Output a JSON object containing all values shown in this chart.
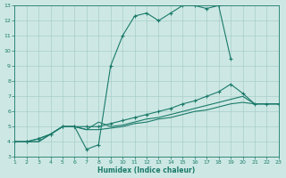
{
  "background_color": "#cde8e4",
  "grid_color": "#a8cdc9",
  "line_color": "#1a7a6a",
  "xlabel": "Humidex (Indice chaleur)",
  "xlim": [
    1,
    23
  ],
  "ylim": [
    3,
    13
  ],
  "xticks": [
    1,
    2,
    3,
    4,
    5,
    6,
    7,
    8,
    9,
    10,
    11,
    12,
    13,
    14,
    15,
    16,
    17,
    18,
    19,
    20,
    21,
    22,
    23
  ],
  "yticks": [
    3,
    4,
    5,
    6,
    7,
    8,
    9,
    10,
    11,
    12,
    13
  ],
  "line1_x": [
    1,
    2,
    3,
    4,
    5,
    6,
    7,
    8,
    9,
    10,
    11,
    12,
    13,
    14,
    15,
    16,
    17,
    18,
    19
  ],
  "line1_y": [
    4.0,
    4.0,
    4.2,
    4.5,
    5.0,
    5.0,
    3.5,
    3.8,
    9.0,
    11.0,
    12.3,
    12.5,
    12.0,
    12.5,
    13.0,
    13.0,
    12.8,
    13.0,
    9.5
  ],
  "line2_x": [
    1,
    2,
    3,
    4,
    5,
    6,
    7,
    8,
    9,
    10,
    11,
    12,
    13,
    14,
    15,
    16,
    17,
    18,
    19,
    20,
    21,
    22,
    23
  ],
  "line2_y": [
    4.0,
    4.0,
    4.2,
    4.5,
    5.0,
    5.0,
    5.0,
    5.0,
    5.2,
    5.4,
    5.6,
    5.8,
    6.0,
    6.2,
    6.5,
    6.7,
    7.0,
    7.3,
    7.8,
    7.2,
    6.5,
    6.5,
    6.5
  ],
  "line3_x": [
    1,
    2,
    3,
    4,
    5,
    6,
    7,
    8,
    9,
    10,
    11,
    12,
    13,
    14,
    15,
    16,
    17,
    18,
    19,
    20,
    21,
    22,
    23
  ],
  "line3_y": [
    4.0,
    4.0,
    4.0,
    4.5,
    5.0,
    5.0,
    4.8,
    5.3,
    5.0,
    5.1,
    5.3,
    5.5,
    5.6,
    5.8,
    6.0,
    6.2,
    6.4,
    6.6,
    6.8,
    7.0,
    6.5,
    6.5,
    6.5
  ],
  "line4_x": [
    1,
    2,
    3,
    4,
    5,
    6,
    7,
    8,
    9,
    10,
    11,
    12,
    13,
    14,
    15,
    16,
    17,
    18,
    19,
    20,
    21,
    22,
    23
  ],
  "line4_y": [
    4.0,
    4.0,
    4.0,
    4.5,
    5.0,
    5.0,
    4.8,
    4.8,
    4.9,
    5.0,
    5.2,
    5.3,
    5.5,
    5.6,
    5.8,
    6.0,
    6.1,
    6.3,
    6.5,
    6.6,
    6.5,
    6.5,
    6.5
  ]
}
